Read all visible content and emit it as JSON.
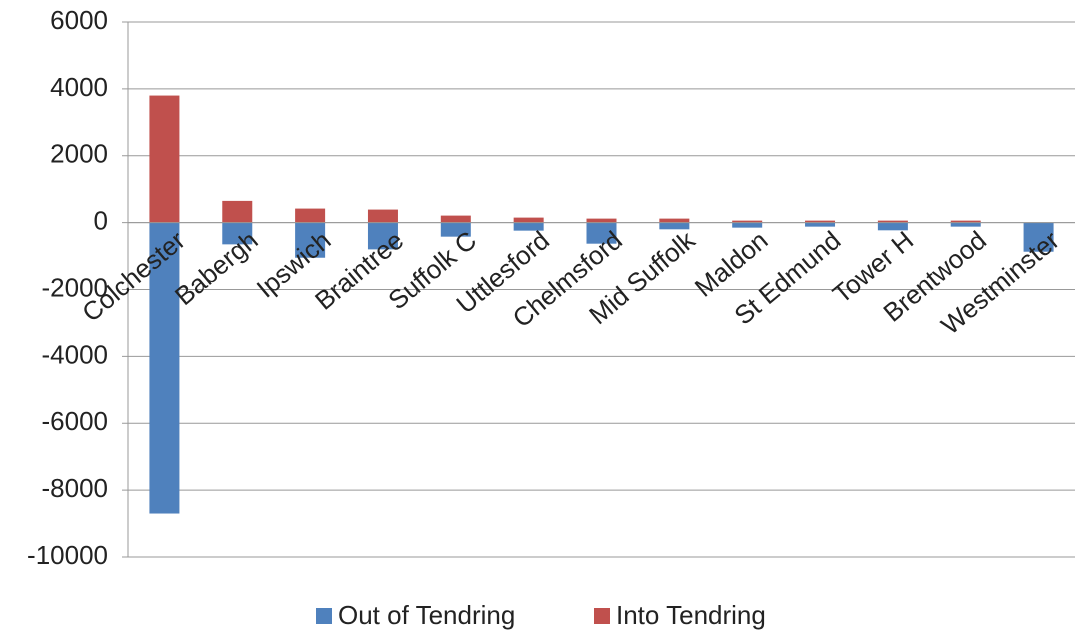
{
  "chart_data": {
    "type": "bar",
    "stacked": true,
    "categories": [
      "Colchester",
      "Babergh",
      "Ipswich",
      "Braintree",
      "Suffolk C",
      "Uttlesford",
      "Chelmsford",
      "Mid Suffolk",
      "Maldon",
      "St Edmund",
      "Tower H",
      "Brentwood",
      "Westminster"
    ],
    "series": [
      {
        "name": "Out of Tendring",
        "color": "#4f81bd",
        "values": [
          -8700,
          -650,
          -1050,
          -800,
          -420,
          -240,
          -630,
          -200,
          -150,
          -120,
          -230,
          -120,
          -870
        ]
      },
      {
        "name": "Into Tendring",
        "color": "#c0504d",
        "values": [
          3800,
          650,
          420,
          390,
          210,
          150,
          120,
          120,
          60,
          60,
          60,
          60,
          0
        ]
      }
    ],
    "ylim": [
      -10000,
      6000
    ],
    "yticks": [
      -10000,
      -8000,
      -6000,
      -4000,
      -2000,
      0,
      2000,
      4000,
      6000
    ],
    "grid": true,
    "legend": "bottom"
  }
}
